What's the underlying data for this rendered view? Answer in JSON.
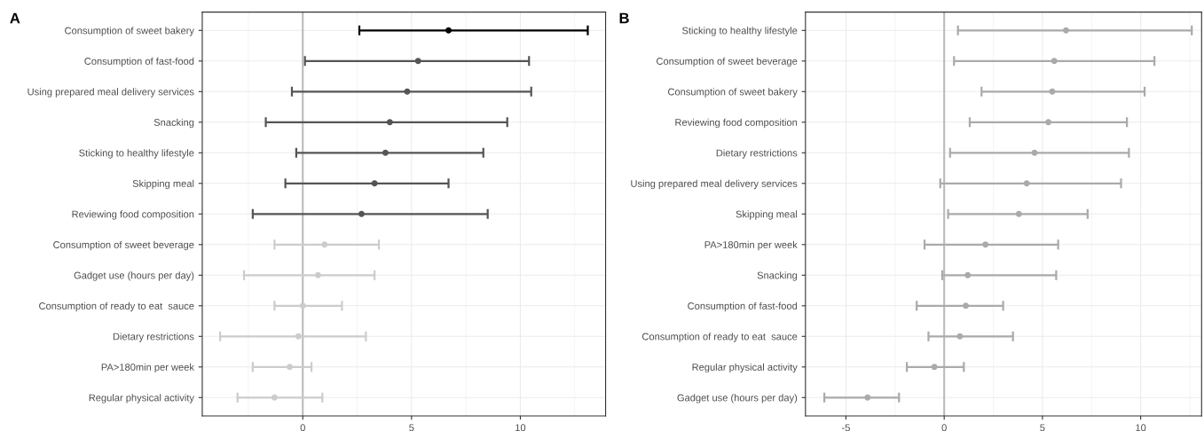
{
  "chart_data": [
    {
      "type": "scatter",
      "title": "A",
      "orientation": "horizontal",
      "marker": "circle",
      "grid": true,
      "categories": [
        "Consumption of sweet bakery",
        "Consumption of fast-food",
        "Using prepared meal delivery services",
        "Snacking",
        "Sticking to healthy lifestyle",
        "Skipping meal",
        "Reviewing food composition",
        "Consumption of sweet beverage",
        "Gadget use (hours per day)",
        "Consumption of ready to eat  sauce",
        "Dietary restrictions",
        "PA>180min per week",
        "Regular physical activity"
      ],
      "values": [
        6.7,
        5.3,
        4.8,
        4.0,
        3.8,
        3.3,
        2.7,
        1.0,
        0.7,
        0.0,
        -0.2,
        -0.6,
        -1.3
      ],
      "errors": [
        [
          2.6,
          13.1
        ],
        [
          0.1,
          10.4
        ],
        [
          -0.5,
          10.5
        ],
        [
          -1.7,
          9.4
        ],
        [
          -0.3,
          8.3
        ],
        [
          -0.8,
          6.7
        ],
        [
          -2.3,
          8.5
        ],
        [
          -1.3,
          3.5
        ],
        [
          -2.7,
          3.3
        ],
        [
          -1.3,
          1.8
        ],
        [
          -3.8,
          2.9
        ],
        [
          -2.3,
          0.4
        ],
        [
          -3.0,
          0.9
        ]
      ],
      "colors": [
        "#000000",
        "#555555",
        "#555555",
        "#555555",
        "#555555",
        "#555555",
        "#555555",
        "#cccccc",
        "#cccccc",
        "#cccccc",
        "#cccccc",
        "#cccccc",
        "#cccccc"
      ],
      "xlim": [
        -4.62,
        13.92
      ],
      "xticks": [
        {
          "value": -2.5,
          "label": null
        },
        0,
        {
          "value": 2.5,
          "label": null
        },
        5,
        {
          "value": 7.5,
          "label": null
        },
        10,
        {
          "value": 12.5,
          "label": null
        }
      ],
      "ref_lines": [
        {
          "axis": "x",
          "value": 0,
          "label": null,
          "color": "#bbbbbb"
        }
      ]
    },
    {
      "type": "scatter",
      "title": "B",
      "orientation": "horizontal",
      "marker": "circle",
      "grid": true,
      "categories": [
        "Sticking to healthy lifestyle",
        "Consumption of sweet beverage",
        "Consumption of sweet bakery",
        "Reviewing food composition",
        "Dietary restrictions",
        "Using prepared meal delivery services",
        "Skipping meal",
        "PA>180min per week",
        "Snacking",
        "Consumption of fast-food",
        "Consumption of ready to eat  sauce",
        "Regular physical activity",
        "Gadget use (hours per day)"
      ],
      "values": [
        6.2,
        5.6,
        5.5,
        5.3,
        4.6,
        4.2,
        3.8,
        2.1,
        1.2,
        1.1,
        0.8,
        -0.5,
        -3.9
      ],
      "errors": [
        [
          0.7,
          12.6
        ],
        [
          0.5,
          10.7
        ],
        [
          1.9,
          10.2
        ],
        [
          1.3,
          9.3
        ],
        [
          0.3,
          9.4
        ],
        [
          -0.2,
          9.0
        ],
        [
          0.2,
          7.3
        ],
        [
          -1.0,
          5.8
        ],
        [
          -0.1,
          5.7
        ],
        [
          -1.4,
          3.0
        ],
        [
          -0.8,
          3.5
        ],
        [
          -1.9,
          1.0
        ],
        [
          -6.1,
          -2.3
        ]
      ],
      "colors": [
        "#aaaaaa",
        "#aaaaaa",
        "#aaaaaa",
        "#aaaaaa",
        "#aaaaaa",
        "#aaaaaa",
        "#aaaaaa",
        "#aaaaaa",
        "#aaaaaa",
        "#aaaaaa",
        "#aaaaaa",
        "#aaaaaa",
        "#aaaaaa"
      ],
      "xlim": [
        -7.06,
        13.1
      ],
      "xticks": [
        -5,
        {
          "value": -2.5,
          "label": null
        },
        0,
        {
          "value": 2.5,
          "label": null
        },
        5,
        {
          "value": 7.5,
          "label": null
        },
        10,
        {
          "value": 12.5,
          "label": null
        }
      ],
      "ref_lines": [
        {
          "axis": "x",
          "value": 0,
          "label": null,
          "color": "#bbbbbb"
        }
      ]
    }
  ]
}
